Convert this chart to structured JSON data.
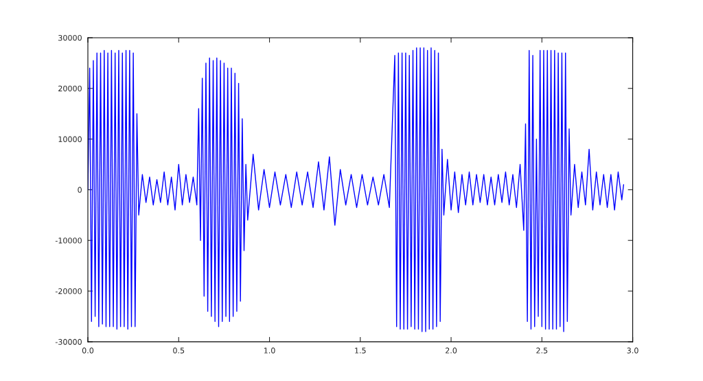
{
  "chart_data": {
    "type": "line",
    "xlim": [
      0,
      3.0
    ],
    "xticks": [
      {
        "value": 0,
        "label": "0.0"
      },
      {
        "value": 0.5,
        "label": "0.5"
      },
      {
        "value": 1.0,
        "label": "1.0"
      },
      {
        "value": 1.5,
        "label": "1.5"
      },
      {
        "value": 2.0,
        "label": "2.0"
      },
      {
        "value": 2.5,
        "label": "2.5"
      },
      {
        "value": 3.0,
        "label": "3.0"
      }
    ],
    "ylim": [
      -30000,
      30000
    ],
    "yticks": [
      -30000,
      -20000,
      -10000,
      0,
      10000,
      20000,
      30000
    ],
    "grid": false,
    "marker": "none",
    "line_style": "solid",
    "series": [
      {
        "color": "#0000ff",
        "x": [
          0.0,
          0.01,
          0.02,
          0.03,
          0.04,
          0.05,
          0.06,
          0.07,
          0.08,
          0.09,
          0.1,
          0.11,
          0.12,
          0.13,
          0.14,
          0.15,
          0.16,
          0.17,
          0.18,
          0.19,
          0.2,
          0.21,
          0.22,
          0.23,
          0.24,
          0.25,
          0.26,
          0.27,
          0.28,
          0.3,
          0.32,
          0.34,
          0.36,
          0.38,
          0.4,
          0.42,
          0.44,
          0.46,
          0.48,
          0.5,
          0.52,
          0.54,
          0.56,
          0.58,
          0.6,
          0.61,
          0.62,
          0.63,
          0.64,
          0.65,
          0.66,
          0.67,
          0.68,
          0.69,
          0.7,
          0.71,
          0.72,
          0.73,
          0.74,
          0.75,
          0.76,
          0.77,
          0.78,
          0.79,
          0.8,
          0.81,
          0.82,
          0.83,
          0.84,
          0.85,
          0.86,
          0.87,
          0.88,
          0.91,
          0.94,
          0.97,
          1.0,
          1.03,
          1.06,
          1.09,
          1.12,
          1.15,
          1.18,
          1.21,
          1.24,
          1.27,
          1.3,
          1.33,
          1.36,
          1.39,
          1.42,
          1.45,
          1.48,
          1.51,
          1.54,
          1.57,
          1.6,
          1.63,
          1.66,
          1.69,
          1.7,
          1.71,
          1.72,
          1.73,
          1.74,
          1.75,
          1.76,
          1.77,
          1.78,
          1.79,
          1.8,
          1.81,
          1.82,
          1.83,
          1.84,
          1.85,
          1.86,
          1.87,
          1.88,
          1.89,
          1.9,
          1.91,
          1.92,
          1.93,
          1.94,
          1.95,
          1.96,
          1.98,
          2.0,
          2.02,
          2.04,
          2.06,
          2.08,
          2.1,
          2.12,
          2.14,
          2.16,
          2.18,
          2.2,
          2.22,
          2.24,
          2.26,
          2.28,
          2.3,
          2.32,
          2.34,
          2.36,
          2.38,
          2.4,
          2.41,
          2.42,
          2.43,
          2.44,
          2.45,
          2.46,
          2.47,
          2.48,
          2.49,
          2.5,
          2.51,
          2.52,
          2.53,
          2.54,
          2.55,
          2.56,
          2.57,
          2.58,
          2.59,
          2.6,
          2.61,
          2.62,
          2.63,
          2.64,
          2.65,
          2.66,
          2.68,
          2.7,
          2.72,
          2.74,
          2.76,
          2.78,
          2.8,
          2.82,
          2.84,
          2.86,
          2.88,
          2.9,
          2.92,
          2.94,
          2.95
        ],
        "values": [
          0,
          24000,
          -26000,
          25500,
          -25000,
          27000,
          -27000,
          27000,
          -26500,
          27500,
          -27000,
          27000,
          -27000,
          27500,
          -27000,
          27000,
          -27500,
          27500,
          -27000,
          27000,
          -27000,
          27500,
          -27500,
          27500,
          -27000,
          27000,
          -27000,
          15000,
          -5000,
          3000,
          -2500,
          2500,
          -3000,
          2000,
          -2500,
          3500,
          -3000,
          2500,
          -4000,
          5000,
          -3000,
          3000,
          -2500,
          2500,
          -3000,
          16000,
          -10000,
          22000,
          -21000,
          25000,
          -24000,
          26000,
          -25000,
          25500,
          -26000,
          26000,
          -27000,
          25500,
          -26000,
          25000,
          -25000,
          24000,
          -26000,
          24000,
          -25000,
          23000,
          -24000,
          21000,
          -22000,
          14000,
          -12000,
          5000,
          -6000,
          7000,
          -4000,
          4000,
          -3500,
          3500,
          -3000,
          3000,
          -3500,
          3500,
          -3000,
          3500,
          -3500,
          5500,
          -4000,
          6500,
          -7000,
          4000,
          -3000,
          3000,
          -3500,
          3000,
          -3000,
          2500,
          -3000,
          3000,
          -3500,
          26500,
          -27000,
          27000,
          -27500,
          27000,
          -27500,
          27000,
          -27500,
          26500,
          -27000,
          27500,
          -27500,
          28000,
          -27500,
          28000,
          -28000,
          28000,
          -28000,
          27500,
          -27500,
          28000,
          -27500,
          27500,
          -27000,
          27000,
          -26000,
          8000,
          -5000,
          6000,
          -4000,
          3500,
          -4500,
          3000,
          -3000,
          3500,
          -3000,
          3000,
          -2500,
          3000,
          -3000,
          2500,
          -3000,
          3000,
          -2500,
          3500,
          -3000,
          3000,
          -3500,
          5000,
          -8000,
          13000,
          -26000,
          27500,
          -27500,
          26500,
          -27000,
          10000,
          -25000,
          27500,
          -27000,
          27500,
          -27500,
          27500,
          -27500,
          27500,
          -27500,
          27500,
          -27500,
          27000,
          -27000,
          27000,
          -28000,
          27000,
          -26000,
          12000,
          -5000,
          5000,
          -3500,
          3500,
          -3000,
          8000,
          -4000,
          3500,
          -3000,
          3000,
          -3500,
          3000,
          -4000,
          3500,
          -2000,
          1000
        ]
      }
    ]
  }
}
